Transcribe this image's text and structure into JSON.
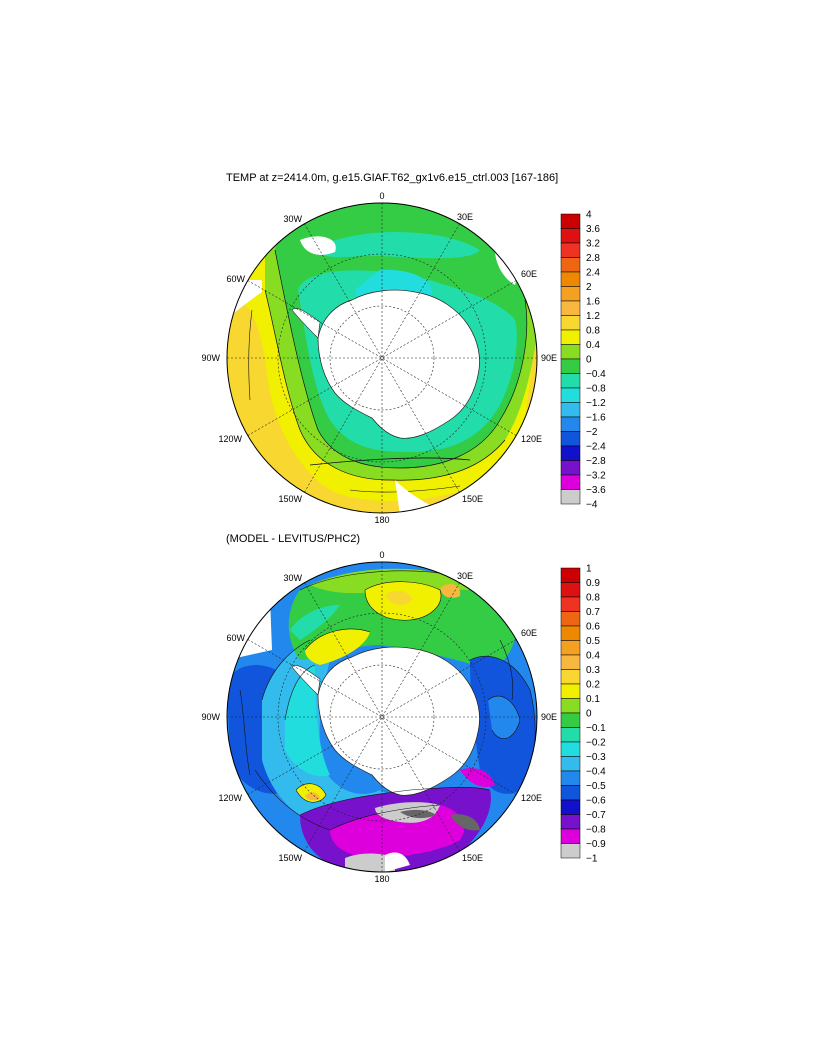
{
  "panels": [
    {
      "title": "TEMP at z=2414.0m, g.e15.GIAF.T62_gx1v6.e15_ctrl.003 [167-186]",
      "longitude_labels": [
        "0",
        "30E",
        "60E",
        "90E",
        "120E",
        "150E",
        "180",
        "150W",
        "120W",
        "90W",
        "60W",
        "30W"
      ],
      "colorbar": {
        "labels": [
          "4",
          "3.6",
          "3.2",
          "2.8",
          "2.4",
          "2",
          "1.6",
          "1.2",
          "0.8",
          "0.4",
          "0",
          "−0.4",
          "−0.8",
          "−1.2",
          "−1.6",
          "−2",
          "−2.4",
          "−2.8",
          "−3.2",
          "−3.6",
          "−4"
        ],
        "colors": [
          "#cc0000",
          "#dd1111",
          "#ee3322",
          "#ee6611",
          "#ee8800",
          "#f4a020",
          "#f8b840",
          "#f8d830",
          "#f0f000",
          "#88dd22",
          "#33cc44",
          "#22ddaa",
          "#22dddd",
          "#33bbee",
          "#2288ee",
          "#1155dd",
          "#1111cc",
          "#7711cc",
          "#dd00dd",
          "#cccccc",
          "#666666"
        ]
      }
    },
    {
      "title": "(MODEL - LEVITUS/PHC2)",
      "longitude_labels": [
        "0",
        "30E",
        "60E",
        "90E",
        "120E",
        "150E",
        "180",
        "150W",
        "120W",
        "90W",
        "60W",
        "30W"
      ],
      "colorbar": {
        "labels": [
          "1",
          "0.9",
          "0.8",
          "0.7",
          "0.6",
          "0.5",
          "0.4",
          "0.3",
          "0.2",
          "0.1",
          "0",
          "−0.1",
          "−0.2",
          "−0.3",
          "−0.4",
          "−0.5",
          "−0.6",
          "−0.7",
          "−0.8",
          "−0.9",
          "−1"
        ],
        "colors": [
          "#cc0000",
          "#dd1111",
          "#ee3322",
          "#ee6611",
          "#ee8800",
          "#f4a020",
          "#f8b840",
          "#f8d830",
          "#f0f000",
          "#88dd22",
          "#33cc44",
          "#22ddaa",
          "#22dddd",
          "#33bbee",
          "#2288ee",
          "#1155dd",
          "#1111cc",
          "#7711cc",
          "#dd00dd",
          "#cccccc",
          "#666666"
        ]
      }
    }
  ]
}
